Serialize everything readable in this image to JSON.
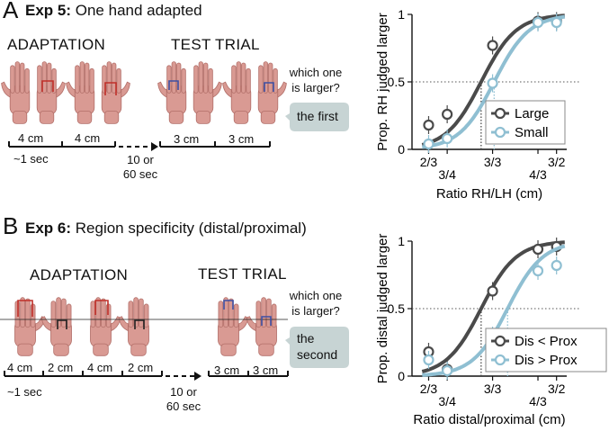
{
  "panelA": {
    "letter": "A",
    "title_bold": "Exp 5:",
    "title_rest": " One hand adapted",
    "adaptation_label": "ADAPTATION",
    "test_label": "TEST TRIAL",
    "question_line1": "which one",
    "question_line2": "is larger?",
    "answer": "the first",
    "dist1": "4 cm",
    "dist2": "4 cm",
    "dist3": "3 cm",
    "dist4": "3 cm",
    "duration": "~1 sec",
    "wait_line1": "10 or",
    "wait_line2": "60 sec"
  },
  "panelB": {
    "letter": "B",
    "title_bold": "Exp 6:",
    "title_rest": " Region specificity (distal/proximal)",
    "adaptation_label": "ADAPTATION",
    "test_label": "TEST TRIAL",
    "question_line1": "which one",
    "question_line2": "is larger?",
    "answer_line1": "the",
    "answer_line2": "second",
    "dist1": "4 cm",
    "dist2": "2 cm",
    "dist3": "4 cm",
    "dist4": "2 cm",
    "dist5": "3 cm",
    "dist6": "3 cm",
    "duration": "~1 sec",
    "wait_line1": "10 or",
    "wait_line2": "60 sec"
  },
  "colors": {
    "dark": "#4a4a4a",
    "light": "#8fbfd2",
    "hand": "#d99a93",
    "hand_edge": "#b26f69",
    "bubble": "#c7d4d4"
  },
  "chart_data": [
    {
      "type": "line",
      "ylabel": "Prop. RH judged larger",
      "xlabel": "Ratio RH/LH (cm)",
      "xscale": "log",
      "xlim": [
        0.6,
        1.6
      ],
      "ylim": [
        0,
        1
      ],
      "x_ticks": [
        0.6667,
        0.75,
        1.0,
        1.3333,
        1.5
      ],
      "x_tick_labels": [
        "2/3",
        "3/4",
        "3/3",
        "4/3",
        "3/2"
      ],
      "y_ticks": [
        0,
        0.5,
        1
      ],
      "y_tick_labels": [
        "0",
        "0.5",
        "1"
      ],
      "reference_line_y": 0.5,
      "legend_position": "center-right",
      "series": [
        {
          "name": "Large",
          "color": "dark",
          "marker": "circle-open",
          "points": [
            [
              0.6667,
              0.18
            ],
            [
              0.75,
              0.26
            ],
            [
              1.0,
              0.77
            ],
            [
              1.3333,
              0.95
            ],
            [
              1.5,
              0.95
            ]
          ],
          "pse": 0.93
        },
        {
          "name": "Small",
          "color": "light",
          "marker": "circle-open",
          "points": [
            [
              0.6667,
              0.04
            ],
            [
              0.75,
              0.08
            ],
            [
              1.0,
              0.49
            ],
            [
              1.3333,
              0.94
            ],
            [
              1.5,
              0.94
            ]
          ],
          "pse": 1.01
        }
      ]
    },
    {
      "type": "line",
      "ylabel": "Prop. distal judged larger",
      "xlabel": "Ratio distal/proximal (cm)",
      "xscale": "log",
      "xlim": [
        0.6,
        1.6
      ],
      "ylim": [
        0,
        1
      ],
      "x_ticks": [
        0.6667,
        0.75,
        1.0,
        1.3333,
        1.5
      ],
      "x_tick_labels": [
        "2/3",
        "3/4",
        "3/3",
        "4/3",
        "3/2"
      ],
      "y_ticks": [
        0,
        0.5,
        1
      ],
      "y_tick_labels": [
        "0",
        "0.5",
        "1"
      ],
      "reference_line_y": 0.5,
      "legend_position": "bottom-right",
      "series": [
        {
          "name": "Dis < Prox",
          "color": "dark",
          "marker": "circle-open",
          "points": [
            [
              0.6667,
              0.18
            ],
            [
              0.75,
              0.05
            ],
            [
              1.0,
              0.63
            ],
            [
              1.3333,
              0.94
            ],
            [
              1.5,
              0.96
            ]
          ],
          "pse": 0.93
        },
        {
          "name": "Dis > Prox",
          "color": "light",
          "marker": "circle-open",
          "points": [
            [
              0.6667,
              0.12
            ],
            [
              0.75,
              0.04
            ],
            [
              1.0,
              0.3
            ],
            [
              1.3333,
              0.78
            ],
            [
              1.5,
              0.82
            ]
          ],
          "pse": 1.1
        }
      ]
    }
  ]
}
